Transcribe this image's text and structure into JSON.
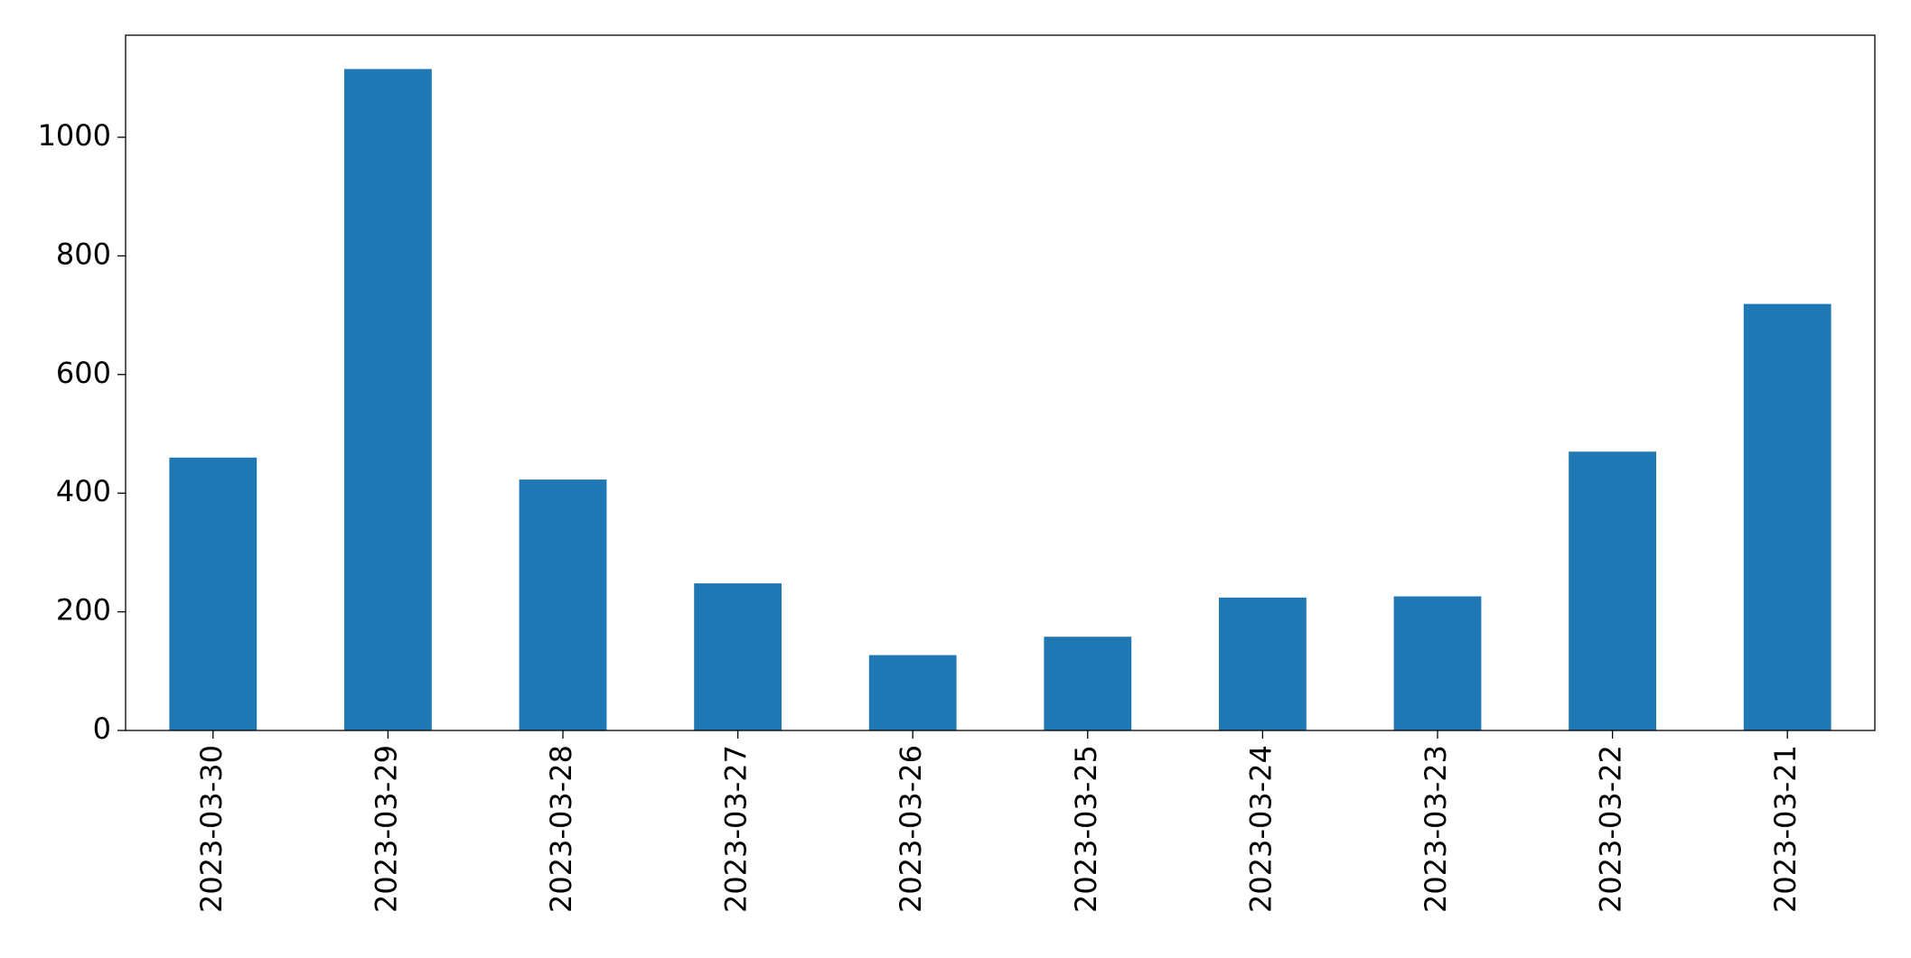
{
  "chart_data": {
    "type": "bar",
    "categories": [
      "2023-03-30",
      "2023-03-29",
      "2023-03-28",
      "2023-03-27",
      "2023-03-26",
      "2023-03-25",
      "2023-03-24",
      "2023-03-23",
      "2023-03-22",
      "2023-03-21"
    ],
    "values": [
      460,
      1115,
      423,
      248,
      127,
      158,
      224,
      226,
      470,
      719
    ],
    "color": "#1f77b4",
    "ylim": [
      0,
      1172
    ],
    "yticks": [
      0,
      200,
      400,
      600,
      800,
      1000
    ],
    "grid": false
  }
}
